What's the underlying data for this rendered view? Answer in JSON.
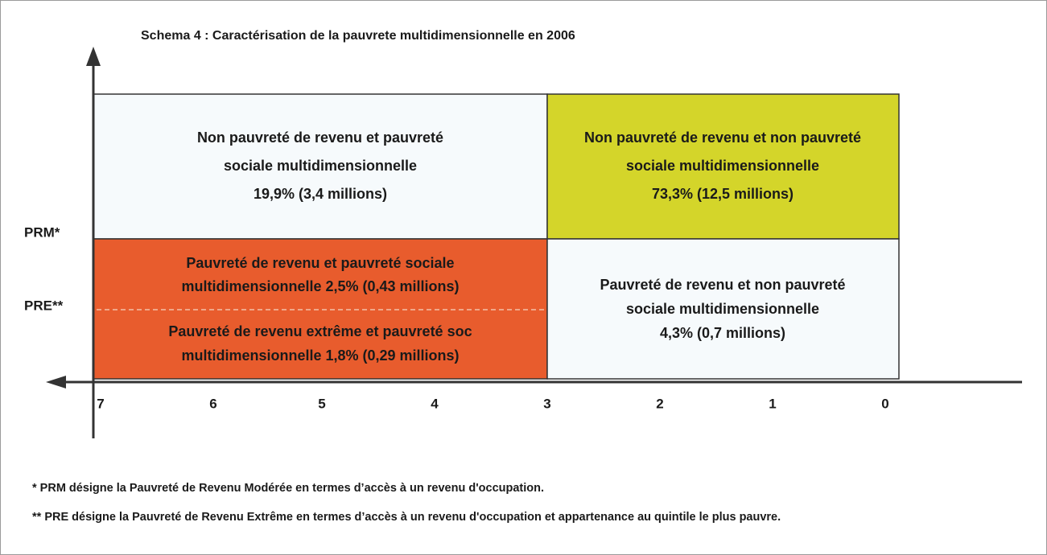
{
  "title": "Schema 4 : Caractérisation de la pauvrete multidimensionnelle en 2006",
  "y_axis": {
    "labels": [
      "PRM*",
      "PRE**"
    ]
  },
  "x_axis": {
    "ticks": [
      7,
      6,
      5,
      4,
      3,
      2,
      1,
      0
    ]
  },
  "cells": [
    {
      "lines": [
        "Non pauvreté de revenu et pauvreté",
        "sociale multidimensionnelle",
        "19,9% (3,4 millions)"
      ]
    },
    {
      "lines": [
        "Non pauvreté de revenu et non pauvreté",
        "sociale multidimensionnelle",
        "73,3% (12,5 millions)"
      ]
    },
    {
      "lines": [
        "Pauvreté de revenu et pauvreté sociale",
        "multidimensionnelle 2,5% (0,43 millions)",
        "Pauvreté de revenu extrême et pauvreté soc",
        "multidimensionnelle 1,8% (0,29 millions)"
      ]
    },
    {
      "lines": [
        "Pauvreté de revenu et non pauvreté",
        "sociale multidimensionnelle",
        "4,3% (0,7 millions)"
      ]
    }
  ],
  "footnotes": [
    "*  PRM désigne la Pauvreté de Revenu Modérée en termes d’accès à un revenu d'occupation.",
    "** PRE désigne la Pauvreté de Revenu Extrême en termes d’accès à un revenu d'occupation et appartenance au quintile le plus pauvre."
  ]
}
